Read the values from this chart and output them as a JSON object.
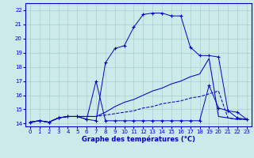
{
  "title": "Graphe des températures (°C)",
  "bg_color": "#cceaea",
  "line_color": "#0000cc",
  "grid_color": "#aacece",
  "xlim": [
    -0.5,
    23.5
  ],
  "ylim": [
    13.8,
    22.5
  ],
  "xticks": [
    0,
    1,
    2,
    3,
    4,
    5,
    6,
    7,
    8,
    9,
    10,
    11,
    12,
    13,
    14,
    15,
    16,
    17,
    18,
    19,
    20,
    21,
    22,
    23
  ],
  "yticks": [
    14,
    15,
    16,
    17,
    18,
    19,
    20,
    21,
    22
  ],
  "series": [
    {
      "x": [
        0,
        1,
        2,
        3,
        4,
        5,
        6,
        7,
        8,
        9,
        10,
        11,
        12,
        13,
        14,
        15,
        16,
        17,
        18,
        19,
        20,
        21,
        22,
        23
      ],
      "y": [
        14.1,
        14.2,
        14.1,
        14.4,
        14.5,
        14.5,
        14.3,
        14.2,
        18.3,
        19.3,
        19.5,
        20.8,
        21.7,
        21.8,
        21.8,
        21.6,
        21.6,
        19.4,
        18.8,
        18.8,
        18.7,
        14.9,
        14.4,
        14.3
      ],
      "marker": "+",
      "dashed": false
    },
    {
      "x": [
        0,
        1,
        2,
        3,
        4,
        5,
        6,
        7,
        8,
        9,
        10,
        11,
        12,
        13,
        14,
        15,
        16,
        17,
        18,
        19,
        20,
        21,
        22,
        23
      ],
      "y": [
        14.1,
        14.2,
        14.1,
        14.4,
        14.5,
        14.5,
        14.3,
        17.0,
        14.2,
        14.2,
        14.2,
        14.2,
        14.2,
        14.2,
        14.2,
        14.2,
        14.2,
        14.2,
        14.2,
        16.7,
        15.1,
        14.9,
        14.8,
        14.3
      ],
      "marker": "+",
      "dashed": false
    },
    {
      "x": [
        0,
        1,
        2,
        3,
        4,
        5,
        6,
        7,
        8,
        9,
        10,
        11,
        12,
        13,
        14,
        15,
        16,
        17,
        18,
        19,
        20,
        21,
        22,
        23
      ],
      "y": [
        14.1,
        14.2,
        14.1,
        14.4,
        14.5,
        14.5,
        14.5,
        14.5,
        14.8,
        15.2,
        15.5,
        15.7,
        16.0,
        16.3,
        16.5,
        16.8,
        17.0,
        17.3,
        17.5,
        18.6,
        14.5,
        14.4,
        14.3,
        14.3
      ],
      "marker": null,
      "dashed": false
    },
    {
      "x": [
        0,
        1,
        2,
        3,
        4,
        5,
        6,
        7,
        8,
        9,
        10,
        11,
        12,
        13,
        14,
        15,
        16,
        17,
        18,
        19,
        20,
        21,
        22,
        23
      ],
      "y": [
        14.1,
        14.2,
        14.1,
        14.4,
        14.5,
        14.5,
        14.5,
        14.5,
        14.6,
        14.7,
        14.8,
        14.9,
        15.1,
        15.2,
        15.4,
        15.5,
        15.6,
        15.8,
        15.9,
        16.1,
        16.3,
        14.4,
        14.3,
        14.3
      ],
      "marker": null,
      "dashed": true
    }
  ]
}
